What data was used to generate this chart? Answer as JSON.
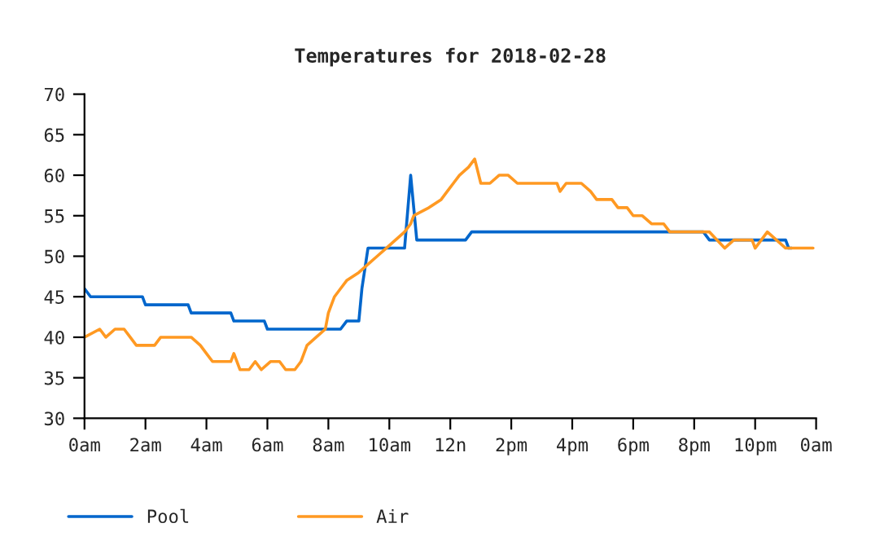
{
  "chart_data": {
    "type": "line",
    "title": "Temperatures for 2018-02-28",
    "xlim": [
      "2018-02-28T00:00",
      "2018-03-01T00:00"
    ],
    "xticks": [
      {
        "value": "2018-02-28T00:00",
        "label": "0am"
      },
      {
        "value": "2018-02-28T02:00",
        "label": "2am"
      },
      {
        "value": "2018-02-28T04:00",
        "label": "4am"
      },
      {
        "value": "2018-02-28T06:00",
        "label": "6am"
      },
      {
        "value": "2018-02-28T08:00",
        "label": "8am"
      },
      {
        "value": "2018-02-28T10:00",
        "label": "10am"
      },
      {
        "value": "2018-02-28T12:00",
        "label": "12n"
      },
      {
        "value": "2018-02-28T14:00",
        "label": "2pm"
      },
      {
        "value": "2018-02-28T16:00",
        "label": "4pm"
      },
      {
        "value": "2018-02-28T18:00",
        "label": "6pm"
      },
      {
        "value": "2018-02-28T20:00",
        "label": "8pm"
      },
      {
        "value": "2018-02-28T22:00",
        "label": "10pm"
      },
      {
        "value": "2018-03-01T00:00",
        "label": "0am"
      }
    ],
    "ylim": [
      30,
      70
    ],
    "yticks": [
      30,
      35,
      40,
      45,
      50,
      55,
      60,
      65,
      70
    ],
    "grid": false,
    "legend": "bottom left",
    "marker": "none",
    "line_style": "solid",
    "series": [
      {
        "name": "Pool",
        "color": "#0066cc",
        "x": [
          "2018-02-28T00:00",
          "2018-02-28T00:12",
          "2018-02-28T01:54",
          "2018-02-28T02:00",
          "2018-02-28T03:24",
          "2018-02-28T03:30",
          "2018-02-28T04:48",
          "2018-02-28T04:54",
          "2018-02-28T05:54",
          "2018-02-28T06:00",
          "2018-02-28T08:24",
          "2018-02-28T08:36",
          "2018-02-28T09:00",
          "2018-02-28T09:06",
          "2018-02-28T09:18",
          "2018-02-28T10:30",
          "2018-02-28T10:42",
          "2018-02-28T10:54",
          "2018-02-28T12:30",
          "2018-02-28T12:42",
          "2018-02-28T20:18",
          "2018-02-28T20:30",
          "2018-02-28T23:00",
          "2018-02-28T23:06",
          "2018-02-28T23:12"
        ],
        "values": [
          46,
          45,
          45,
          44,
          44,
          43,
          43,
          42,
          42,
          41,
          41,
          42,
          42,
          46,
          51,
          51,
          60,
          52,
          52,
          53,
          53,
          52,
          52,
          51,
          51
        ]
      },
      {
        "name": "Air",
        "color": "#ff9922",
        "x": [
          "2018-02-28T00:00",
          "2018-02-28T00:30",
          "2018-02-28T00:42",
          "2018-02-28T01:00",
          "2018-02-28T01:18",
          "2018-02-28T01:30",
          "2018-02-28T01:42",
          "2018-02-28T02:18",
          "2018-02-28T02:30",
          "2018-02-28T03:30",
          "2018-02-28T03:48",
          "2018-02-28T04:00",
          "2018-02-28T04:12",
          "2018-02-28T04:48",
          "2018-02-28T04:54",
          "2018-02-28T05:06",
          "2018-02-28T05:24",
          "2018-02-28T05:36",
          "2018-02-28T05:48",
          "2018-02-28T06:06",
          "2018-02-28T06:24",
          "2018-02-28T06:36",
          "2018-02-28T06:54",
          "2018-02-28T07:06",
          "2018-02-28T07:18",
          "2018-02-28T07:36",
          "2018-02-28T07:54",
          "2018-02-28T08:00",
          "2018-02-28T08:12",
          "2018-02-28T08:24",
          "2018-02-28T08:36",
          "2018-02-28T09:00",
          "2018-02-28T09:18",
          "2018-02-28T09:36",
          "2018-02-28T09:54",
          "2018-02-28T10:12",
          "2018-02-28T10:30",
          "2018-02-28T10:42",
          "2018-02-28T10:48",
          "2018-02-28T11:18",
          "2018-02-28T11:42",
          "2018-02-28T11:54",
          "2018-02-28T12:06",
          "2018-02-28T12:18",
          "2018-02-28T12:36",
          "2018-02-28T12:48",
          "2018-02-28T13:00",
          "2018-02-28T13:18",
          "2018-02-28T13:36",
          "2018-02-28T13:54",
          "2018-02-28T14:12",
          "2018-02-28T15:30",
          "2018-02-28T15:36",
          "2018-02-28T15:48",
          "2018-02-28T16:18",
          "2018-02-28T16:36",
          "2018-02-28T16:48",
          "2018-02-28T17:18",
          "2018-02-28T17:30",
          "2018-02-28T17:48",
          "2018-02-28T18:00",
          "2018-02-28T18:18",
          "2018-02-28T18:36",
          "2018-02-28T19:00",
          "2018-02-28T19:12",
          "2018-02-28T20:30",
          "2018-02-28T21:00",
          "2018-02-28T21:18",
          "2018-02-28T21:54",
          "2018-02-28T22:00",
          "2018-02-28T22:24",
          "2018-02-28T22:42",
          "2018-02-28T23:00",
          "2018-02-28T23:54"
        ],
        "values": [
          40,
          41,
          40,
          41,
          41,
          40,
          39,
          39,
          40,
          40,
          39,
          38,
          37,
          37,
          38,
          36,
          36,
          37,
          36,
          37,
          37,
          36,
          36,
          37,
          39,
          40,
          41,
          43,
          45,
          46,
          47,
          48,
          49,
          50,
          51,
          52,
          53,
          54,
          55,
          56,
          57,
          58,
          59,
          60,
          61,
          62,
          59,
          59,
          60,
          60,
          59,
          59,
          58,
          59,
          59,
          58,
          57,
          57,
          56,
          56,
          55,
          55,
          54,
          54,
          53,
          53,
          51,
          52,
          52,
          51,
          53,
          52,
          51,
          51
        ]
      }
    ]
  }
}
